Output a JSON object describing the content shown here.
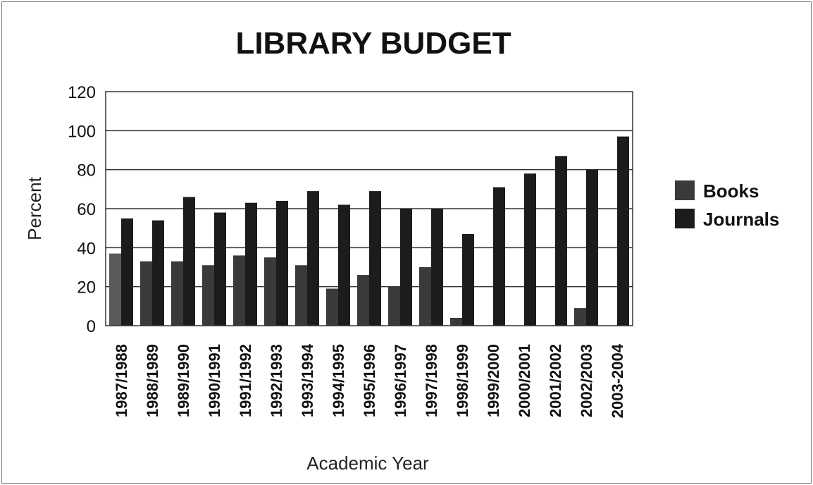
{
  "chart_data": {
    "type": "bar",
    "title": "LIBRARY BUDGET",
    "xlabel": "Academic Year",
    "ylabel": "Percent",
    "ylim": [
      0,
      120
    ],
    "yticks": [
      0,
      20,
      40,
      60,
      80,
      100,
      120
    ],
    "grid": true,
    "legend_position": "right",
    "categories": [
      "1987/1988",
      "1988/1989",
      "1989/1990",
      "1990/1991",
      "1991/1992",
      "1992/1993",
      "1993/1994",
      "1994/1995",
      "1995/1996",
      "1996/1997",
      "1997/1998",
      "1998/1999",
      "1999/2000",
      "2000/2001",
      "2001/2002",
      "2002/2003",
      "2003-2004"
    ],
    "series": [
      {
        "name": "Books",
        "color": "#3a3a3a",
        "values": [
          37,
          33,
          33,
          31,
          36,
          35,
          31,
          19,
          26,
          20,
          30,
          4,
          0,
          0,
          0,
          9,
          0
        ]
      },
      {
        "name": "Journals",
        "color": "#1c1c1c",
        "values": [
          55,
          54,
          66,
          58,
          63,
          64,
          69,
          62,
          69,
          60,
          60,
          47,
          71,
          78,
          87,
          80,
          97
        ]
      }
    ]
  }
}
